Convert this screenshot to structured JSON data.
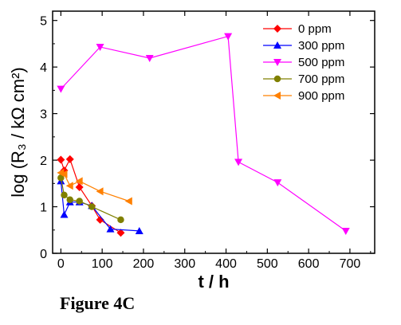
{
  "caption": "Figure 4C",
  "chart_data": {
    "type": "line",
    "title": "",
    "xlabel": "t / h",
    "ylabel": "log (R₃ / kΩ cm²)",
    "xlim": [
      -20,
      760
    ],
    "ylim": [
      0,
      5.2
    ],
    "xticks": [
      0,
      100,
      200,
      300,
      400,
      500,
      600,
      700
    ],
    "yticks": [
      0,
      1,
      2,
      3,
      4,
      5
    ],
    "grid": false,
    "legend_position": "top-right",
    "series": [
      {
        "name": "0 ppm",
        "color": "#ff0000",
        "marker": "diamond",
        "x": [
          0,
          8,
          22,
          45,
          75,
          95,
          145
        ],
        "y": [
          2.01,
          1.78,
          2.02,
          1.42,
          1.02,
          0.72,
          0.44
        ]
      },
      {
        "name": "300 ppm",
        "color": "#0000ff",
        "marker": "triangle-up",
        "x": [
          0,
          8,
          22,
          45,
          75,
          120,
          190
        ],
        "y": [
          1.55,
          0.83,
          1.1,
          1.1,
          1.02,
          0.52,
          0.48
        ]
      },
      {
        "name": "500 ppm",
        "color": "#ff00ff",
        "marker": "triangle-down",
        "x": [
          0,
          95,
          215,
          405,
          430,
          525,
          690
        ],
        "y": [
          3.53,
          4.43,
          4.19,
          4.66,
          1.96,
          1.52,
          0.48
        ]
      },
      {
        "name": "700 ppm",
        "color": "#808000",
        "marker": "circle",
        "x": [
          0,
          8,
          22,
          45,
          75,
          145
        ],
        "y": [
          1.62,
          1.25,
          1.15,
          1.12,
          1.0,
          0.72
        ]
      },
      {
        "name": "900 ppm",
        "color": "#ff8000",
        "marker": "triangle-left",
        "x": [
          0,
          8,
          22,
          45,
          95,
          165
        ],
        "y": [
          1.73,
          1.7,
          1.45,
          1.55,
          1.33,
          1.12
        ]
      }
    ]
  }
}
